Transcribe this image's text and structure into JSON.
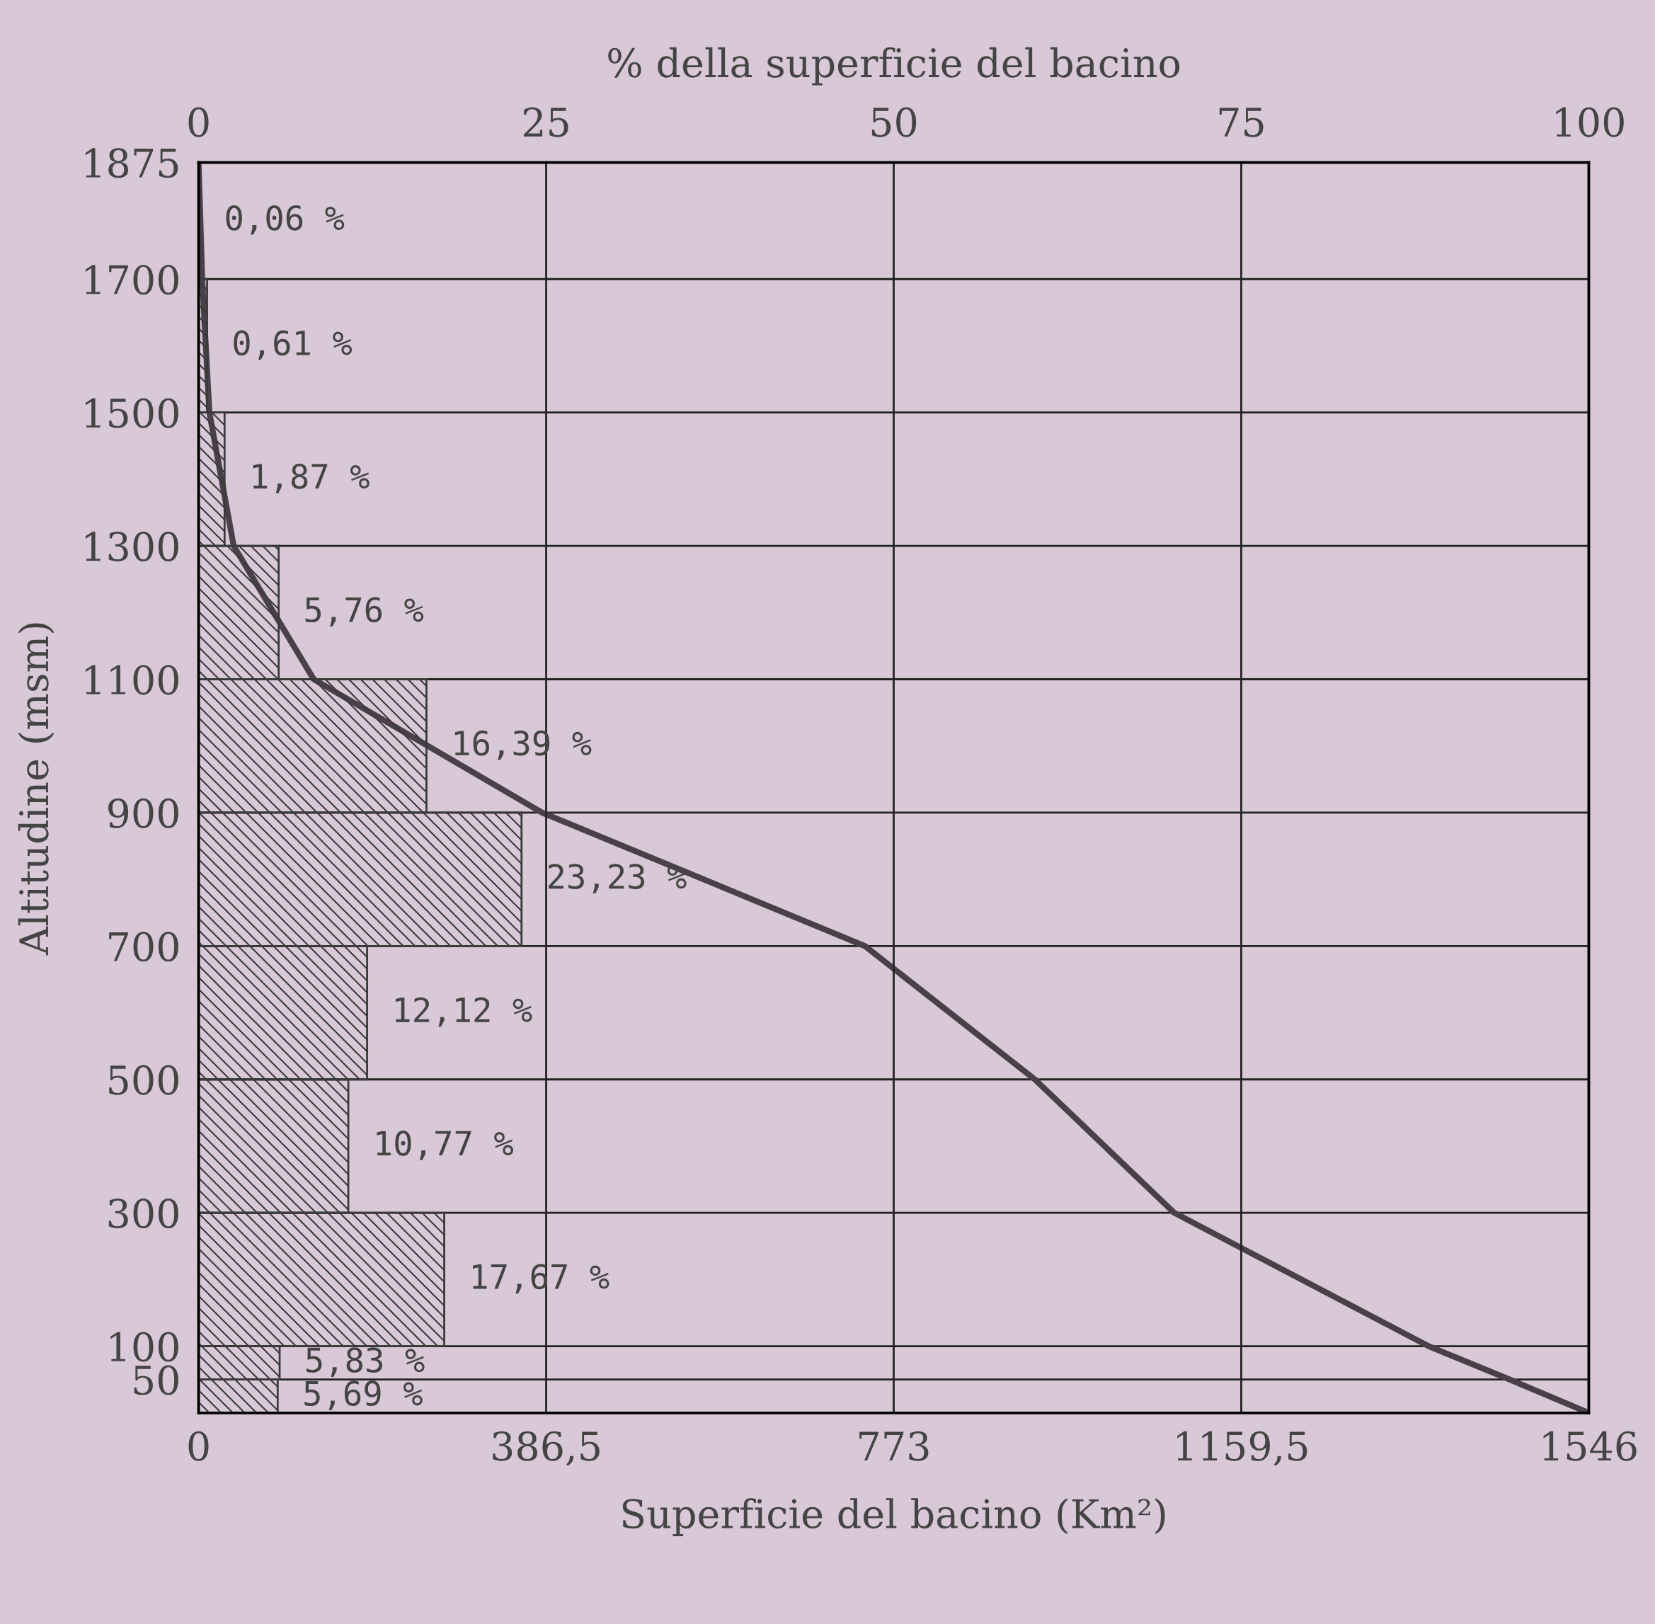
{
  "chart_data": {
    "type": "histogram",
    "orientation": "horizontal",
    "x2label": "% della superficie del bacino",
    "xlabel": "Superficie del bacino (Km²)",
    "ylabel": "Altitudine (msm)",
    "bins": [
      0,
      50,
      100,
      300,
      500,
      700,
      900,
      1100,
      1300,
      1500,
      1700,
      1875
    ],
    "series": [
      {
        "type": "histogram",
        "axis": "x2",
        "color": "#3a3a3a",
        "values": [
          5.69,
          5.83,
          17.67,
          10.77,
          12.12,
          23.23,
          16.39,
          5.76,
          1.87,
          0.61,
          0.06
        ],
        "value_labels": [
          "5,69 %",
          "5,83 %",
          "17,67 %",
          "10,77 %",
          "12,12 %",
          "23,23 %",
          "16,39 %",
          "5,76 %",
          "1,87 %",
          "0,61 %",
          "0,06 %"
        ]
      },
      {
        "type": "line",
        "color": "#4a4048",
        "x": [
          0,
          50,
          100,
          300,
          500,
          700,
          900,
          1100,
          1300,
          1500,
          1700,
          1875
        ],
        "values": [
          1546,
          1458,
          1368,
          1085,
          930,
          741,
          382,
          128,
          39,
          12,
          4,
          0
        ]
      }
    ],
    "xlim": [
      0,
      1546
    ],
    "xticks": [
      0,
      {
        "value": 386.5,
        "label": "386,5"
      },
      773,
      {
        "value": 1159.5,
        "label": "1159,5"
      },
      1546
    ],
    "x2lim": [
      0,
      100
    ],
    "x2ticks": [
      0,
      25,
      50,
      75,
      100
    ],
    "ylim": [
      0,
      1875
    ],
    "yticks": [
      50,
      100,
      300,
      500,
      700,
      900,
      1100,
      1300,
      1500,
      1700,
      1875
    ],
    "grid": true
  }
}
